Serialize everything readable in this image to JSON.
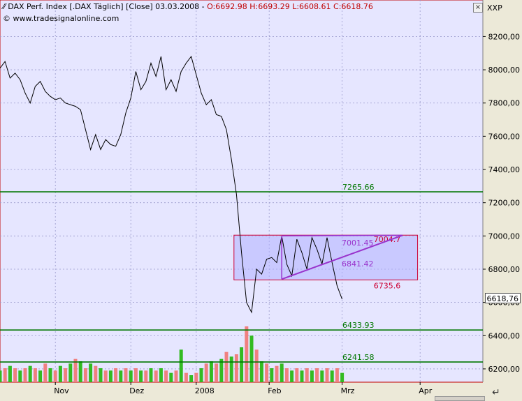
{
  "header": {
    "title": "DAX Perf. Index [.DAX  Täglich] [Close] 03.03.2008 - ",
    "ohlc": "O:6692.98 H:6693.29 L:6608.61 C:6618.76",
    "watermark": "© www.tradesignalonline.com",
    "right_label": "XXP",
    "close_button": "×"
  },
  "last_price_label": "6618,76",
  "chart_data": {
    "type": "line",
    "title": "DAX Perf. Index [.DAX  Täglich] [Close] 03.03.2008",
    "ylim": [
      6120,
      8420
    ],
    "y_ticks": [
      6200,
      6400,
      6600,
      6800,
      7000,
      7200,
      7400,
      7600,
      7800,
      8000,
      8200
    ],
    "y_tick_labels": [
      "6200,00",
      "6400,00",
      "6600,00",
      "6800,00",
      "7000,00",
      "7200,00",
      "7400,00",
      "7600,00",
      "7800,00",
      "8000,00",
      "8200,00"
    ],
    "x_ticks": [
      {
        "label": "Nov",
        "day": 22
      },
      {
        "label": "Dez",
        "day": 52
      },
      {
        "label": "2008",
        "day": 78
      },
      {
        "label": "Feb",
        "day": 107
      },
      {
        "label": "Mrz",
        "day": 136
      },
      {
        "label": "Apr",
        "day": 167
      }
    ],
    "series": [
      {
        "type": "line",
        "color": "#000000",
        "points": [
          [
            0,
            8010
          ],
          [
            2,
            8050
          ],
          [
            4,
            7950
          ],
          [
            6,
            7980
          ],
          [
            8,
            7940
          ],
          [
            10,
            7860
          ],
          [
            12,
            7800
          ],
          [
            14,
            7900
          ],
          [
            16,
            7930
          ],
          [
            18,
            7870
          ],
          [
            20,
            7840
          ],
          [
            22,
            7820
          ],
          [
            24,
            7830
          ],
          [
            26,
            7800
          ],
          [
            28,
            7790
          ],
          [
            30,
            7780
          ],
          [
            32,
            7760
          ],
          [
            34,
            7640
          ],
          [
            36,
            7520
          ],
          [
            38,
            7610
          ],
          [
            40,
            7520
          ],
          [
            42,
            7580
          ],
          [
            44,
            7550
          ],
          [
            46,
            7540
          ],
          [
            48,
            7610
          ],
          [
            50,
            7740
          ],
          [
            52,
            7830
          ],
          [
            54,
            7990
          ],
          [
            56,
            7880
          ],
          [
            58,
            7930
          ],
          [
            60,
            8040
          ],
          [
            62,
            7960
          ],
          [
            64,
            8080
          ],
          [
            66,
            7880
          ],
          [
            68,
            7940
          ],
          [
            70,
            7870
          ],
          [
            72,
            7990
          ],
          [
            74,
            8040
          ],
          [
            76,
            8080
          ],
          [
            78,
            7970
          ],
          [
            80,
            7860
          ],
          [
            82,
            7790
          ],
          [
            84,
            7820
          ],
          [
            86,
            7730
          ],
          [
            88,
            7720
          ],
          [
            90,
            7640
          ],
          [
            92,
            7460
          ],
          [
            94,
            7250
          ],
          [
            96,
            6900
          ],
          [
            98,
            6600
          ],
          [
            100,
            6540
          ],
          [
            102,
            6800
          ],
          [
            104,
            6770
          ],
          [
            106,
            6860
          ],
          [
            108,
            6870
          ],
          [
            110,
            6840
          ],
          [
            112,
            7000
          ],
          [
            114,
            6830
          ],
          [
            116,
            6760
          ],
          [
            118,
            6980
          ],
          [
            120,
            6900
          ],
          [
            122,
            6800
          ],
          [
            124,
            6990
          ],
          [
            126,
            6920
          ],
          [
            128,
            6830
          ],
          [
            130,
            6990
          ],
          [
            132,
            6840
          ],
          [
            134,
            6700
          ],
          [
            136,
            6619
          ]
        ]
      },
      {
        "type": "volume",
        "up_color": "#33bb22",
        "down_color": "#f08080",
        "bars": [
          [
            0,
            5,
            "up"
          ],
          [
            2,
            6,
            "down"
          ],
          [
            4,
            7,
            "up"
          ],
          [
            6,
            6,
            "down"
          ],
          [
            8,
            5,
            "up"
          ],
          [
            10,
            6,
            "down"
          ],
          [
            12,
            7,
            "up"
          ],
          [
            14,
            6,
            "down"
          ],
          [
            16,
            5,
            "up"
          ],
          [
            18,
            8,
            "down"
          ],
          [
            20,
            6,
            "up"
          ],
          [
            22,
            5,
            "down"
          ],
          [
            24,
            7,
            "up"
          ],
          [
            26,
            6,
            "down"
          ],
          [
            28,
            8,
            "up"
          ],
          [
            30,
            10,
            "down"
          ],
          [
            32,
            9,
            "up"
          ],
          [
            34,
            6,
            "down"
          ],
          [
            36,
            8,
            "up"
          ],
          [
            38,
            7,
            "down"
          ],
          [
            40,
            6,
            "up"
          ],
          [
            42,
            5,
            "down"
          ],
          [
            44,
            5,
            "up"
          ],
          [
            46,
            6,
            "down"
          ],
          [
            48,
            5,
            "up"
          ],
          [
            50,
            6,
            "down"
          ],
          [
            52,
            5,
            "up"
          ],
          [
            54,
            6,
            "down"
          ],
          [
            56,
            5,
            "up"
          ],
          [
            58,
            5,
            "down"
          ],
          [
            60,
            6,
            "up"
          ],
          [
            62,
            5,
            "down"
          ],
          [
            64,
            6,
            "up"
          ],
          [
            66,
            5,
            "down"
          ],
          [
            68,
            4,
            "up"
          ],
          [
            70,
            5,
            "down"
          ],
          [
            72,
            14,
            "up"
          ],
          [
            74,
            4,
            "down"
          ],
          [
            76,
            3,
            "up"
          ],
          [
            78,
            4,
            "down"
          ],
          [
            80,
            6,
            "up"
          ],
          [
            82,
            8,
            "down"
          ],
          [
            84,
            9,
            "up"
          ],
          [
            86,
            8,
            "down"
          ],
          [
            88,
            10,
            "up"
          ],
          [
            90,
            13,
            "down"
          ],
          [
            92,
            11,
            "up"
          ],
          [
            94,
            12,
            "down"
          ],
          [
            96,
            15,
            "up"
          ],
          [
            98,
            24,
            "down"
          ],
          [
            100,
            20,
            "up"
          ],
          [
            102,
            14,
            "down"
          ],
          [
            104,
            9,
            "up"
          ],
          [
            106,
            8,
            "down"
          ],
          [
            108,
            6,
            "up"
          ],
          [
            110,
            7,
            "down"
          ],
          [
            112,
            8,
            "up"
          ],
          [
            114,
            6,
            "down"
          ],
          [
            116,
            5,
            "up"
          ],
          [
            118,
            6,
            "down"
          ],
          [
            120,
            5,
            "up"
          ],
          [
            122,
            6,
            "down"
          ],
          [
            124,
            5,
            "up"
          ],
          [
            126,
            6,
            "down"
          ],
          [
            128,
            5,
            "up"
          ],
          [
            130,
            6,
            "down"
          ],
          [
            132,
            5,
            "up"
          ],
          [
            134,
            6,
            "down"
          ],
          [
            136,
            4,
            "up"
          ]
        ]
      }
    ],
    "horizontal_lines": [
      {
        "value": 7265.66,
        "label": "7265.66",
        "color": "#007700"
      },
      {
        "value": 6433.93,
        "label": "6433.93",
        "color": "#007700"
      },
      {
        "value": 6241.58,
        "label": "6241.58",
        "color": "#007700"
      }
    ],
    "rectangle": {
      "x0": 93,
      "x1": 166,
      "y_top": 7004.7,
      "y_bottom": 6735.6,
      "top_label": "7004.7",
      "bottom_label": "6735.6",
      "color": "#cc0033"
    },
    "triangle": {
      "apex_x": 112,
      "apex_top": 7001,
      "apex_bottom": 6740,
      "end_x": 160,
      "end_value": 7004,
      "mid_label": "6841.42",
      "upper_label": "7001.45",
      "color": "#9933cc"
    },
    "volume_scale": 30
  }
}
